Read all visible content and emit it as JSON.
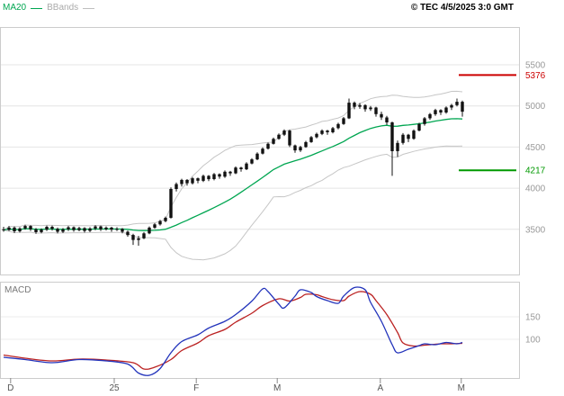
{
  "header": {
    "ma20_label": "MA20",
    "bbands_label": "BBands",
    "copyright": "© TEC 4/5/2025 3:0 GMT"
  },
  "chart_data": {
    "type": "candlestick",
    "title": "",
    "candle_color": "#111111",
    "price_axis": {
      "ticks": [
        5500,
        5000,
        4500,
        4000,
        3500
      ]
    },
    "levels": [
      {
        "label": "5376",
        "value": 5376,
        "color": "#cc0000"
      },
      {
        "label": "4217",
        "value": 4217,
        "color": "#009900"
      }
    ],
    "x_axis": {
      "ticks": [
        {
          "label": "D",
          "i": 1.3
        },
        {
          "label": "25",
          "i": 20.5
        },
        {
          "label": "F",
          "i": 35.7
        },
        {
          "label": "M",
          "i": 50.7
        },
        {
          "label": "A",
          "i": 69.8
        },
        {
          "label": "M",
          "i": 84.8
        }
      ]
    },
    "overlays": {
      "ma20": {
        "label": "MA20",
        "period": 20,
        "color": "#00a651"
      },
      "bbands": {
        "label": "BBands",
        "color": "#c6c6c6"
      }
    },
    "candles": [
      [
        3500,
        3530,
        3470,
        3490
      ],
      [
        3490,
        3540,
        3480,
        3520
      ],
      [
        3520,
        3535,
        3455,
        3475
      ],
      [
        3475,
        3525,
        3460,
        3510
      ],
      [
        3510,
        3555,
        3495,
        3540
      ],
      [
        3540,
        3550,
        3480,
        3500
      ],
      [
        3500,
        3515,
        3445,
        3465
      ],
      [
        3465,
        3510,
        3450,
        3495
      ],
      [
        3495,
        3545,
        3480,
        3530
      ],
      [
        3530,
        3545,
        3485,
        3505
      ],
      [
        3505,
        3520,
        3450,
        3470
      ],
      [
        3470,
        3515,
        3455,
        3500
      ],
      [
        3500,
        3540,
        3480,
        3525
      ],
      [
        3525,
        3535,
        3470,
        3490
      ],
      [
        3490,
        3530,
        3475,
        3515
      ],
      [
        3515,
        3525,
        3460,
        3480
      ],
      [
        3480,
        3525,
        3465,
        3510
      ],
      [
        3510,
        3550,
        3490,
        3535
      ],
      [
        3535,
        3545,
        3480,
        3500
      ],
      [
        3500,
        3535,
        3485,
        3520
      ],
      [
        3520,
        3530,
        3470,
        3495
      ],
      [
        3495,
        3525,
        3480,
        3505
      ],
      [
        3505,
        3515,
        3450,
        3470
      ],
      [
        3470,
        3485,
        3410,
        3430
      ],
      [
        3430,
        3445,
        3310,
        3370
      ],
      [
        3370,
        3420,
        3300,
        3390
      ],
      [
        3390,
        3465,
        3380,
        3450
      ],
      [
        3450,
        3535,
        3440,
        3520
      ],
      [
        3520,
        3575,
        3505,
        3560
      ],
      [
        3560,
        3615,
        3545,
        3600
      ],
      [
        3600,
        3655,
        3585,
        3640
      ],
      [
        3640,
        4010,
        3630,
        3990
      ],
      [
        3990,
        4070,
        3960,
        4050
      ],
      [
        4050,
        4115,
        4020,
        4100
      ],
      [
        4100,
        4110,
        4030,
        4060
      ],
      [
        4060,
        4135,
        4045,
        4120
      ],
      [
        4120,
        4130,
        4060,
        4090
      ],
      [
        4090,
        4165,
        4075,
        4150
      ],
      [
        4150,
        4160,
        4085,
        4110
      ],
      [
        4110,
        4185,
        4095,
        4170
      ],
      [
        4170,
        4180,
        4115,
        4140
      ],
      [
        4140,
        4215,
        4125,
        4200
      ],
      [
        4200,
        4210,
        4150,
        4180
      ],
      [
        4180,
        4265,
        4170,
        4250
      ],
      [
        4250,
        4260,
        4200,
        4230
      ],
      [
        4230,
        4315,
        4220,
        4300
      ],
      [
        4300,
        4365,
        4290,
        4350
      ],
      [
        4350,
        4435,
        4340,
        4420
      ],
      [
        4420,
        4495,
        4410,
        4480
      ],
      [
        4480,
        4555,
        4470,
        4540
      ],
      [
        4540,
        4615,
        4530,
        4600
      ],
      [
        4600,
        4665,
        4590,
        4650
      ],
      [
        4650,
        4715,
        4635,
        4700
      ],
      [
        4700,
        4710,
        4500,
        4520
      ],
      [
        4520,
        4530,
        4430,
        4460
      ],
      [
        4460,
        4515,
        4440,
        4500
      ],
      [
        4500,
        4575,
        4490,
        4560
      ],
      [
        4560,
        4635,
        4550,
        4620
      ],
      [
        4620,
        4675,
        4605,
        4660
      ],
      [
        4660,
        4715,
        4645,
        4700
      ],
      [
        4700,
        4710,
        4650,
        4680
      ],
      [
        4680,
        4745,
        4665,
        4730
      ],
      [
        4730,
        4795,
        4715,
        4780
      ],
      [
        4780,
        4865,
        4770,
        4850
      ],
      [
        4850,
        5090,
        4840,
        5040
      ],
      [
        5040,
        5055,
        4960,
        4990
      ],
      [
        4990,
        5035,
        4965,
        5010
      ],
      [
        5010,
        5020,
        4930,
        4960
      ],
      [
        4960,
        5000,
        4940,
        4980
      ],
      [
        4980,
        4990,
        4870,
        4900
      ],
      [
        4900,
        4930,
        4830,
        4860
      ],
      [
        4860,
        4880,
        4770,
        4800
      ],
      [
        4800,
        4810,
        4150,
        4450
      ],
      [
        4450,
        4580,
        4380,
        4550
      ],
      [
        4550,
        4670,
        4530,
        4650
      ],
      [
        4650,
        4660,
        4560,
        4600
      ],
      [
        4600,
        4715,
        4590,
        4700
      ],
      [
        4700,
        4795,
        4690,
        4780
      ],
      [
        4780,
        4865,
        4760,
        4850
      ],
      [
        4850,
        4915,
        4830,
        4900
      ],
      [
        4900,
        4965,
        4880,
        4950
      ],
      [
        4950,
        4960,
        4890,
        4920
      ],
      [
        4920,
        4995,
        4905,
        4980
      ],
      [
        4980,
        5025,
        4950,
        5010
      ],
      [
        5010,
        5090,
        4995,
        5050
      ],
      [
        5050,
        5065,
        4870,
        4930
      ]
    ],
    "macd": {
      "label": "MACD",
      "color_line": "#2233bb",
      "color_signal": "#bb2222",
      "axis_ticks": [
        150,
        100
      ],
      "line": [
        [
          0,
          60
        ],
        [
          4,
          55
        ],
        [
          9,
          48
        ],
        [
          14,
          55
        ],
        [
          19,
          52
        ],
        [
          23,
          45
        ],
        [
          25,
          25
        ],
        [
          27,
          20
        ],
        [
          29,
          35
        ],
        [
          31,
          70
        ],
        [
          33,
          95
        ],
        [
          36,
          110
        ],
        [
          38,
          125
        ],
        [
          41,
          140
        ],
        [
          43,
          155
        ],
        [
          46,
          185
        ],
        [
          48,
          212
        ],
        [
          49,
          206
        ],
        [
          51,
          178
        ],
        [
          52,
          170
        ],
        [
          54,
          196
        ],
        [
          55,
          210
        ],
        [
          57,
          204
        ],
        [
          58,
          195
        ],
        [
          60,
          186
        ],
        [
          62,
          180
        ],
        [
          63,
          196
        ],
        [
          65,
          215
        ],
        [
          67,
          210
        ],
        [
          68,
          182
        ],
        [
          70,
          140
        ],
        [
          72,
          88
        ],
        [
          73,
          70
        ],
        [
          75,
          78
        ],
        [
          77,
          86
        ],
        [
          78,
          90
        ],
        [
          80,
          88
        ],
        [
          82,
          93
        ],
        [
          84,
          90
        ],
        [
          85,
          93
        ]
      ],
      "signal": [
        [
          0,
          65
        ],
        [
          4,
          58
        ],
        [
          9,
          52
        ],
        [
          14,
          56
        ],
        [
          19,
          54
        ],
        [
          24,
          48
        ],
        [
          26,
          34
        ],
        [
          28,
          38
        ],
        [
          31,
          55
        ],
        [
          33,
          75
        ],
        [
          36,
          92
        ],
        [
          38,
          108
        ],
        [
          41,
          122
        ],
        [
          43,
          138
        ],
        [
          46,
          158
        ],
        [
          48,
          175
        ],
        [
          51,
          190
        ],
        [
          53,
          185
        ],
        [
          55,
          193
        ],
        [
          56,
          200
        ],
        [
          58,
          199
        ],
        [
          59,
          195
        ],
        [
          61,
          188
        ],
        [
          63,
          186
        ],
        [
          64,
          196
        ],
        [
          66,
          206
        ],
        [
          68,
          200
        ],
        [
          69,
          186
        ],
        [
          71,
          155
        ],
        [
          73,
          115
        ],
        [
          74,
          92
        ],
        [
          76,
          85
        ],
        [
          78,
          87
        ],
        [
          79,
          88
        ],
        [
          81,
          90
        ],
        [
          83,
          90
        ],
        [
          85,
          91
        ]
      ]
    }
  }
}
